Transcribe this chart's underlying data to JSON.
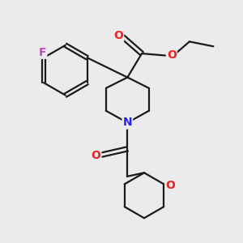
{
  "background_color": "#ebebeb",
  "bond_color": "#1a1a1a",
  "bond_width": 1.6,
  "figsize": [
    3.0,
    3.0
  ],
  "dpi": 100,
  "atoms": {
    "F": {
      "color": "#cc44cc",
      "fontsize": 10
    },
    "O": {
      "color": "#ee2222",
      "fontsize": 10
    },
    "N": {
      "color": "#2222ee",
      "fontsize": 10
    },
    "C": {
      "color": "#1a1a1a",
      "fontsize": 9
    }
  }
}
